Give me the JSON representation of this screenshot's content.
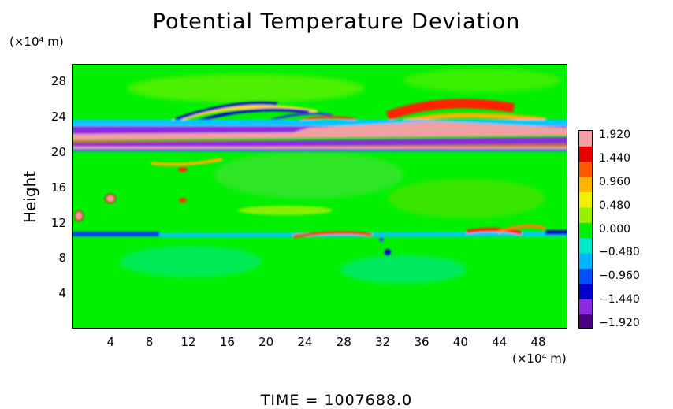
{
  "chart_data": {
    "type": "heatmap",
    "title": "Potential Temperature Deviation",
    "ylabel": "Height",
    "y_unit": "(×10⁴ m)",
    "x_unit": "(×10⁴ m)",
    "x_ticks": [
      "4",
      "8",
      "12",
      "16",
      "20",
      "24",
      "28",
      "32",
      "36",
      "40",
      "44",
      "48"
    ],
    "y_ticks": [
      "4",
      "8",
      "12",
      "16",
      "20",
      "24",
      "28"
    ],
    "xlim": [
      0,
      51
    ],
    "ylim": [
      0,
      30
    ],
    "colorbar": {
      "min": -1.92,
      "max": 1.92,
      "labels": [
        "1.920",
        "1.440",
        "0.960",
        "0.480",
        "0.000",
        "−0.480",
        "−0.960",
        "−1.440",
        "−1.920"
      ],
      "colors": [
        "#4b0082",
        "#8a2be2",
        "#0000c8",
        "#0050ff",
        "#00b4ff",
        "#00e6c8",
        "#00f000",
        "#96f000",
        "#f0f000",
        "#ffb400",
        "#ff5a00",
        "#e60000",
        "#f0a0a0"
      ]
    },
    "time_label": "TIME = 1007688.0",
    "features": [
      {
        "description_band": "warm",
        "y": 21,
        "value": 1.92
      },
      {
        "description_band": "cold",
        "y": 22.5,
        "value": -1.92
      },
      {
        "description_band": "cold",
        "y": 10.5,
        "value": -1.44
      },
      {
        "description_band": "warm",
        "y": 24.5,
        "value": 1.2
      }
    ]
  }
}
